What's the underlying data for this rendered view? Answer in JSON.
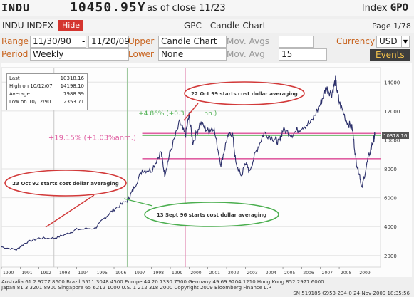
{
  "header": {
    "ticker": "INDU",
    "price": "10450.95Y",
    "as_of": "as of close 11/23",
    "index_label": "Index",
    "function_code": "GPO"
  },
  "controls": {
    "security": "INDU INDEX",
    "hide_label": "Hide",
    "chart_title": "GPC - Candle Chart",
    "page": "Page 1/78",
    "range_label": "Range",
    "range_start": "11/30/90",
    "range_sep": "-",
    "range_end": "11/20/09",
    "upper_label": "Upper",
    "upper_value": "Candle Chart",
    "mov_avgs_label": "Mov. Avgs",
    "currency_label": "Currency",
    "currency_value": "USD",
    "period_label": "Period",
    "period_value": "Weekly",
    "lower_label": "Lower",
    "lower_value": "None",
    "mov_avg_label": "Mov. Avg",
    "mov_avg_value": "15",
    "events_label": "Events"
  },
  "stats": {
    "last_label": "Last",
    "last_value": "10318.16",
    "high_label": "High on 10/12/07",
    "high_value": "14198.10",
    "avg_label": "Average",
    "avg_value": "7988.39",
    "low_label": "Low on 10/12/90",
    "low_value": "2353.71"
  },
  "annotations": {
    "oct92": "23 Oct 92 starts cost dollar averaging",
    "sept96": "13 Sept 96 starts cost dollar averaging",
    "oct99": "22 Oct 99 starts cost dollar averaging",
    "pct_green": "+4.86% (+0.3",
    "pct_green_tail": "nn.)",
    "pct_pink": "+19.15% (+1.03%anm.)",
    "last_price_tag": "10318.16"
  },
  "footer": {
    "line1": "Australia 61 2 9777 8600  Brazil 5511 3048 4500  Europe 44 20 7330 7500  Germany 49 69 9204 1210  Hong Kong 852 2977 6000",
    "line2": "Japan 81 3 3201 8900          Singapore 65 6212 1000          U.S. 1 212 318 2000          Copyright 2009 Bloomberg Finance L.P.",
    "line3": "SN 519185 G953-234-0 24-Nov-2009 18:35:56"
  },
  "chart_data": {
    "type": "line",
    "x_tick_labels": [
      "1990",
      "1991",
      "1992",
      "1993",
      "1994",
      "1995",
      "1996",
      "1997",
      "1998",
      "1999",
      "2000",
      "2001",
      "2002",
      "2003",
      "2004",
      "2005",
      "2006",
      "2007",
      "2008",
      "2009"
    ],
    "y_tick_labels": [
      "2000",
      "4000",
      "6000",
      "8000",
      "10000",
      "12000",
      "14000"
    ],
    "ylim": [
      1200,
      15000
    ],
    "series": [
      {
        "values": [
          {
            "x": 1990.0,
            "y": 2600
          },
          {
            "x": 1990.8,
            "y": 2400
          },
          {
            "x": 1991.3,
            "y": 2900
          },
          {
            "x": 1992.0,
            "y": 3200
          },
          {
            "x": 1992.8,
            "y": 3200
          },
          {
            "x": 1993.5,
            "y": 3500
          },
          {
            "x": 1994.0,
            "y": 3800
          },
          {
            "x": 1995.0,
            "y": 3900
          },
          {
            "x": 1995.5,
            "y": 4600
          },
          {
            "x": 1996.0,
            "y": 5200
          },
          {
            "x": 1996.7,
            "y": 5800
          },
          {
            "x": 1997.0,
            "y": 6500
          },
          {
            "x": 1997.5,
            "y": 7900
          },
          {
            "x": 1998.0,
            "y": 7900
          },
          {
            "x": 1998.5,
            "y": 9200
          },
          {
            "x": 1998.7,
            "y": 7600
          },
          {
            "x": 1999.0,
            "y": 9200
          },
          {
            "x": 1999.5,
            "y": 11200
          },
          {
            "x": 1999.8,
            "y": 10300
          },
          {
            "x": 2000.0,
            "y": 11700
          },
          {
            "x": 2000.2,
            "y": 9800
          },
          {
            "x": 2000.6,
            "y": 11200
          },
          {
            "x": 2001.0,
            "y": 10600
          },
          {
            "x": 2001.3,
            "y": 10900
          },
          {
            "x": 2001.7,
            "y": 8300
          },
          {
            "x": 2002.0,
            "y": 10000
          },
          {
            "x": 2002.3,
            "y": 10600
          },
          {
            "x": 2002.5,
            "y": 8300
          },
          {
            "x": 2002.8,
            "y": 7500
          },
          {
            "x": 2003.0,
            "y": 8500
          },
          {
            "x": 2003.2,
            "y": 7800
          },
          {
            "x": 2003.6,
            "y": 9300
          },
          {
            "x": 2004.0,
            "y": 10500
          },
          {
            "x": 2004.5,
            "y": 10100
          },
          {
            "x": 2004.8,
            "y": 9800
          },
          {
            "x": 2005.0,
            "y": 10700
          },
          {
            "x": 2005.5,
            "y": 10400
          },
          {
            "x": 2006.0,
            "y": 10900
          },
          {
            "x": 2006.5,
            "y": 11200
          },
          {
            "x": 2007.0,
            "y": 12500
          },
          {
            "x": 2007.3,
            "y": 13600
          },
          {
            "x": 2007.6,
            "y": 13200
          },
          {
            "x": 2007.8,
            "y": 14100
          },
          {
            "x": 2008.0,
            "y": 12600
          },
          {
            "x": 2008.4,
            "y": 11300
          },
          {
            "x": 2008.7,
            "y": 10800
          },
          {
            "x": 2008.9,
            "y": 8500
          },
          {
            "x": 2009.1,
            "y": 7500
          },
          {
            "x": 2009.2,
            "y": 6600
          },
          {
            "x": 2009.5,
            "y": 8500
          },
          {
            "x": 2009.8,
            "y": 9900
          },
          {
            "x": 2009.9,
            "y": 10318
          }
        ]
      }
    ],
    "horizontal_lines": [
      {
        "y": 10318,
        "color": "#4caf50"
      },
      {
        "y": 10450,
        "color": "#e05fa2"
      },
      {
        "y": 8700,
        "color": "#e05fa2"
      }
    ],
    "vertical_lines": [
      {
        "x": 1992.8,
        "color": "#c8c8c8"
      },
      {
        "x": 1996.7,
        "color": "#9ac59a"
      },
      {
        "x": 1999.8,
        "color": "#e086b0"
      }
    ]
  }
}
